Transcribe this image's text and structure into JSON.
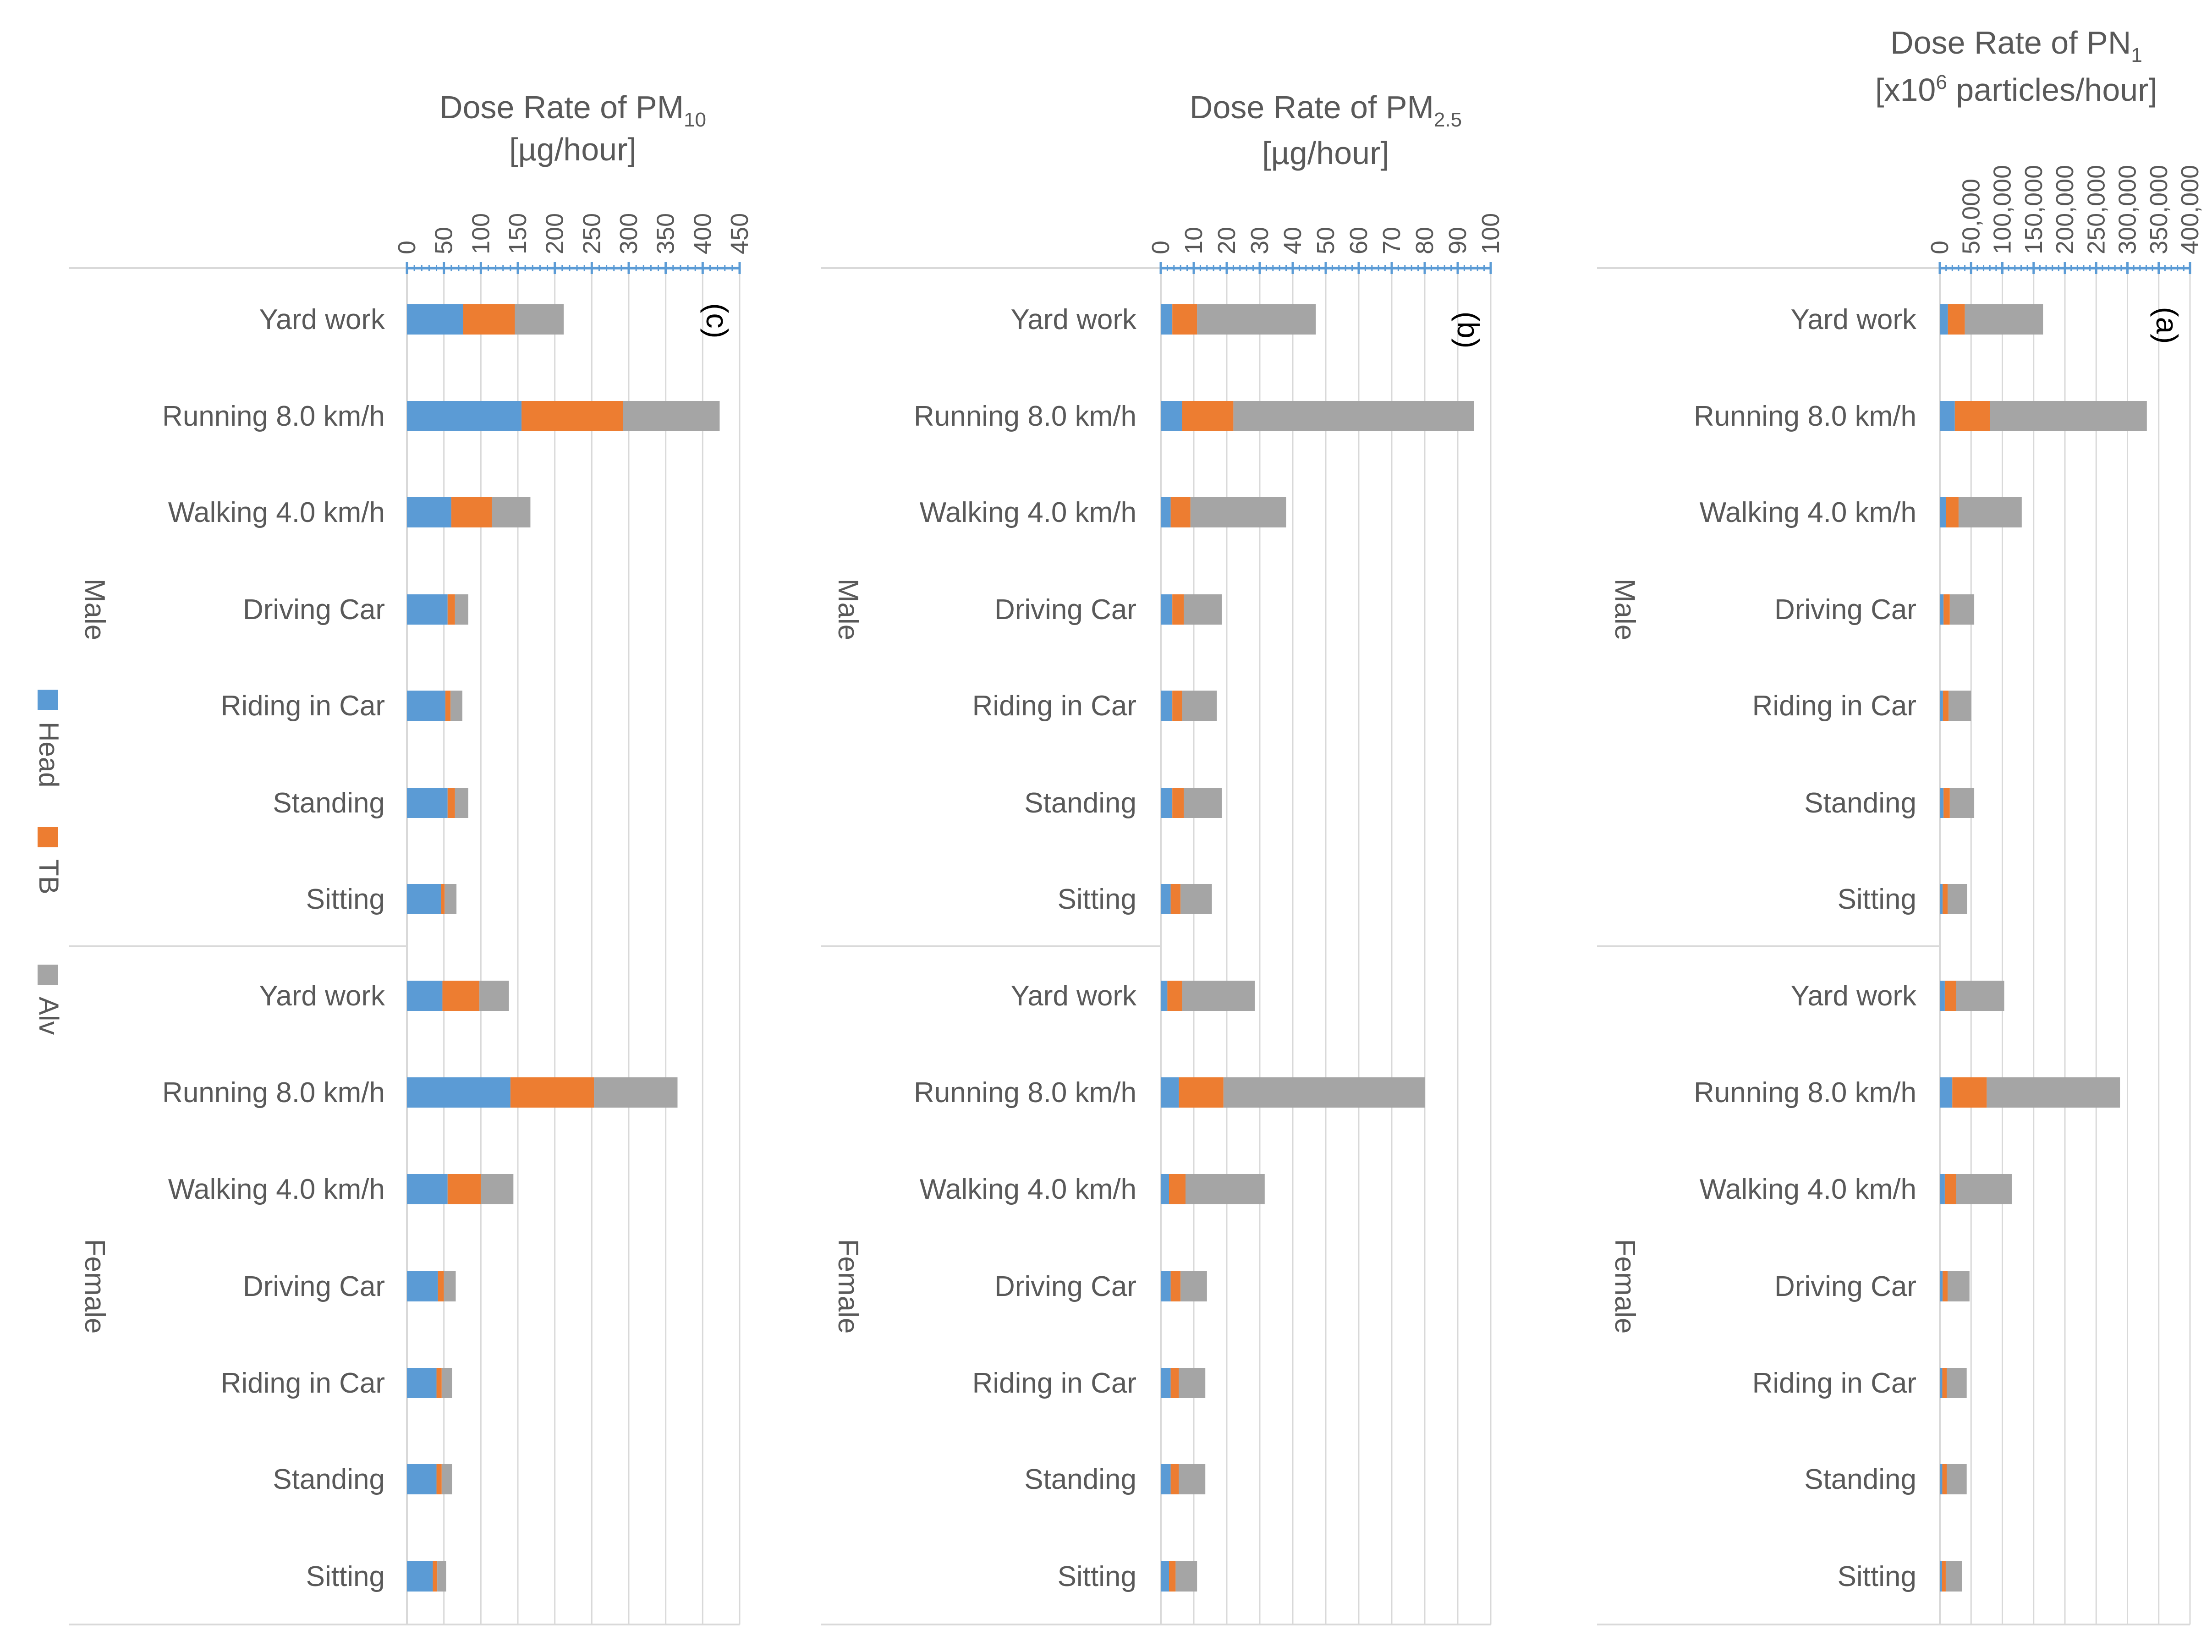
{
  "chart_data": [
    {
      "type": "bar",
      "orientation": "horizontal-stacked",
      "panel_label": "(c)",
      "title": {
        "base": "Dose Rate of PM",
        "sub": "10",
        "units": "[µg/hour]"
      },
      "xlim": [
        0,
        450
      ],
      "ticks": [
        0,
        50,
        100,
        150,
        200,
        250,
        300,
        350,
        400,
        450
      ],
      "tick_labels": [
        "0",
        "50",
        "100",
        "150",
        "200",
        "250",
        "300",
        "350",
        "400",
        "450"
      ],
      "series": [
        {
          "name": "Head",
          "values": [
            76,
            155,
            60,
            55,
            52,
            55,
            46,
            48,
            140,
            55,
            42,
            40,
            40,
            35
          ]
        },
        {
          "name": "TB",
          "values": [
            70,
            137,
            55,
            10,
            7,
            10,
            5,
            50,
            113,
            45,
            8,
            7,
            7,
            6
          ]
        },
        {
          "name": "Alv",
          "values": [
            66,
            131,
            52,
            18,
            16,
            18,
            16,
            40,
            113,
            44,
            16,
            14,
            14,
            12
          ]
        }
      ]
    },
    {
      "type": "bar",
      "orientation": "horizontal-stacked",
      "panel_label": "(b)",
      "title": {
        "base": "Dose Rate of PM",
        "sub": "2.5",
        "units": "[µg/hour]"
      },
      "xlim": [
        0,
        100
      ],
      "ticks": [
        0,
        10,
        20,
        30,
        40,
        50,
        60,
        70,
        80,
        90,
        100
      ],
      "tick_labels": [
        "0",
        "10",
        "20",
        "30",
        "40",
        "50",
        "60",
        "70",
        "80",
        "90",
        "100"
      ],
      "series": [
        {
          "name": "Head",
          "values": [
            3.5,
            6.5,
            3,
            3.5,
            3.5,
            3.5,
            3,
            2,
            5.5,
            2.5,
            3,
            3,
            3,
            2.5
          ]
        },
        {
          "name": "TB",
          "values": [
            7.5,
            15.5,
            6,
            3.5,
            3,
            3.5,
            3,
            4.5,
            13.5,
            5,
            3,
            2.5,
            2.5,
            2
          ]
        },
        {
          "name": "Alv",
          "values": [
            36,
            73,
            29,
            11.5,
            10.5,
            11.5,
            9.5,
            22,
            61,
            24,
            8,
            8,
            8,
            6.5
          ]
        }
      ]
    },
    {
      "type": "bar",
      "orientation": "horizontal-stacked",
      "panel_label": "(a)",
      "title": {
        "base": "Dose Rate of PN",
        "sub": "1",
        "units_pre": "[x10",
        "units_sup": "6",
        "units_post": " particles/hour]"
      },
      "xlim": [
        0,
        400000
      ],
      "ticks": [
        0,
        50000,
        100000,
        150000,
        200000,
        250000,
        300000,
        350000,
        400000
      ],
      "tick_labels": [
        "0",
        "50,000",
        "100,000",
        "150,000",
        "200,000",
        "250,000",
        "300,000",
        "350,000",
        "400,000"
      ],
      "series": [
        {
          "name": "Head",
          "values": [
            13000,
            24000,
            10000,
            6000,
            5000,
            6000,
            4500,
            8000,
            20000,
            8000,
            4500,
            4000,
            4000,
            3500
          ]
        },
        {
          "name": "TB",
          "values": [
            27000,
            56000,
            20000,
            10000,
            9000,
            10000,
            8000,
            18000,
            55000,
            18000,
            8000,
            7000,
            7000,
            6000
          ]
        },
        {
          "name": "Alv",
          "values": [
            125000,
            251000,
            101000,
            39000,
            36000,
            39000,
            31000,
            77000,
            213000,
            89000,
            35000,
            32000,
            32000,
            26000
          ]
        }
      ]
    }
  ],
  "categories": [
    "Yard work",
    "Running 8.0 km/h",
    "Walking 4.0 km/h",
    "Driving Car",
    "Riding in Car",
    "Standing",
    "Sitting",
    "Yard work",
    "Running 8.0 km/h",
    "Walking 4.0 km/h",
    "Driving Car",
    "Riding in Car",
    "Standing",
    "Sitting"
  ],
  "groups": [
    "Male",
    "Female"
  ],
  "legend": [
    {
      "name": "Head",
      "color": "#5B9BD5"
    },
    {
      "name": "TB",
      "color": "#ED7D31"
    },
    {
      "name": "Alv",
      "color": "#A5A5A5"
    }
  ],
  "colors": {
    "axis": "#5B9BD5",
    "grid": "#D9D9D9",
    "text": "#595959"
  }
}
